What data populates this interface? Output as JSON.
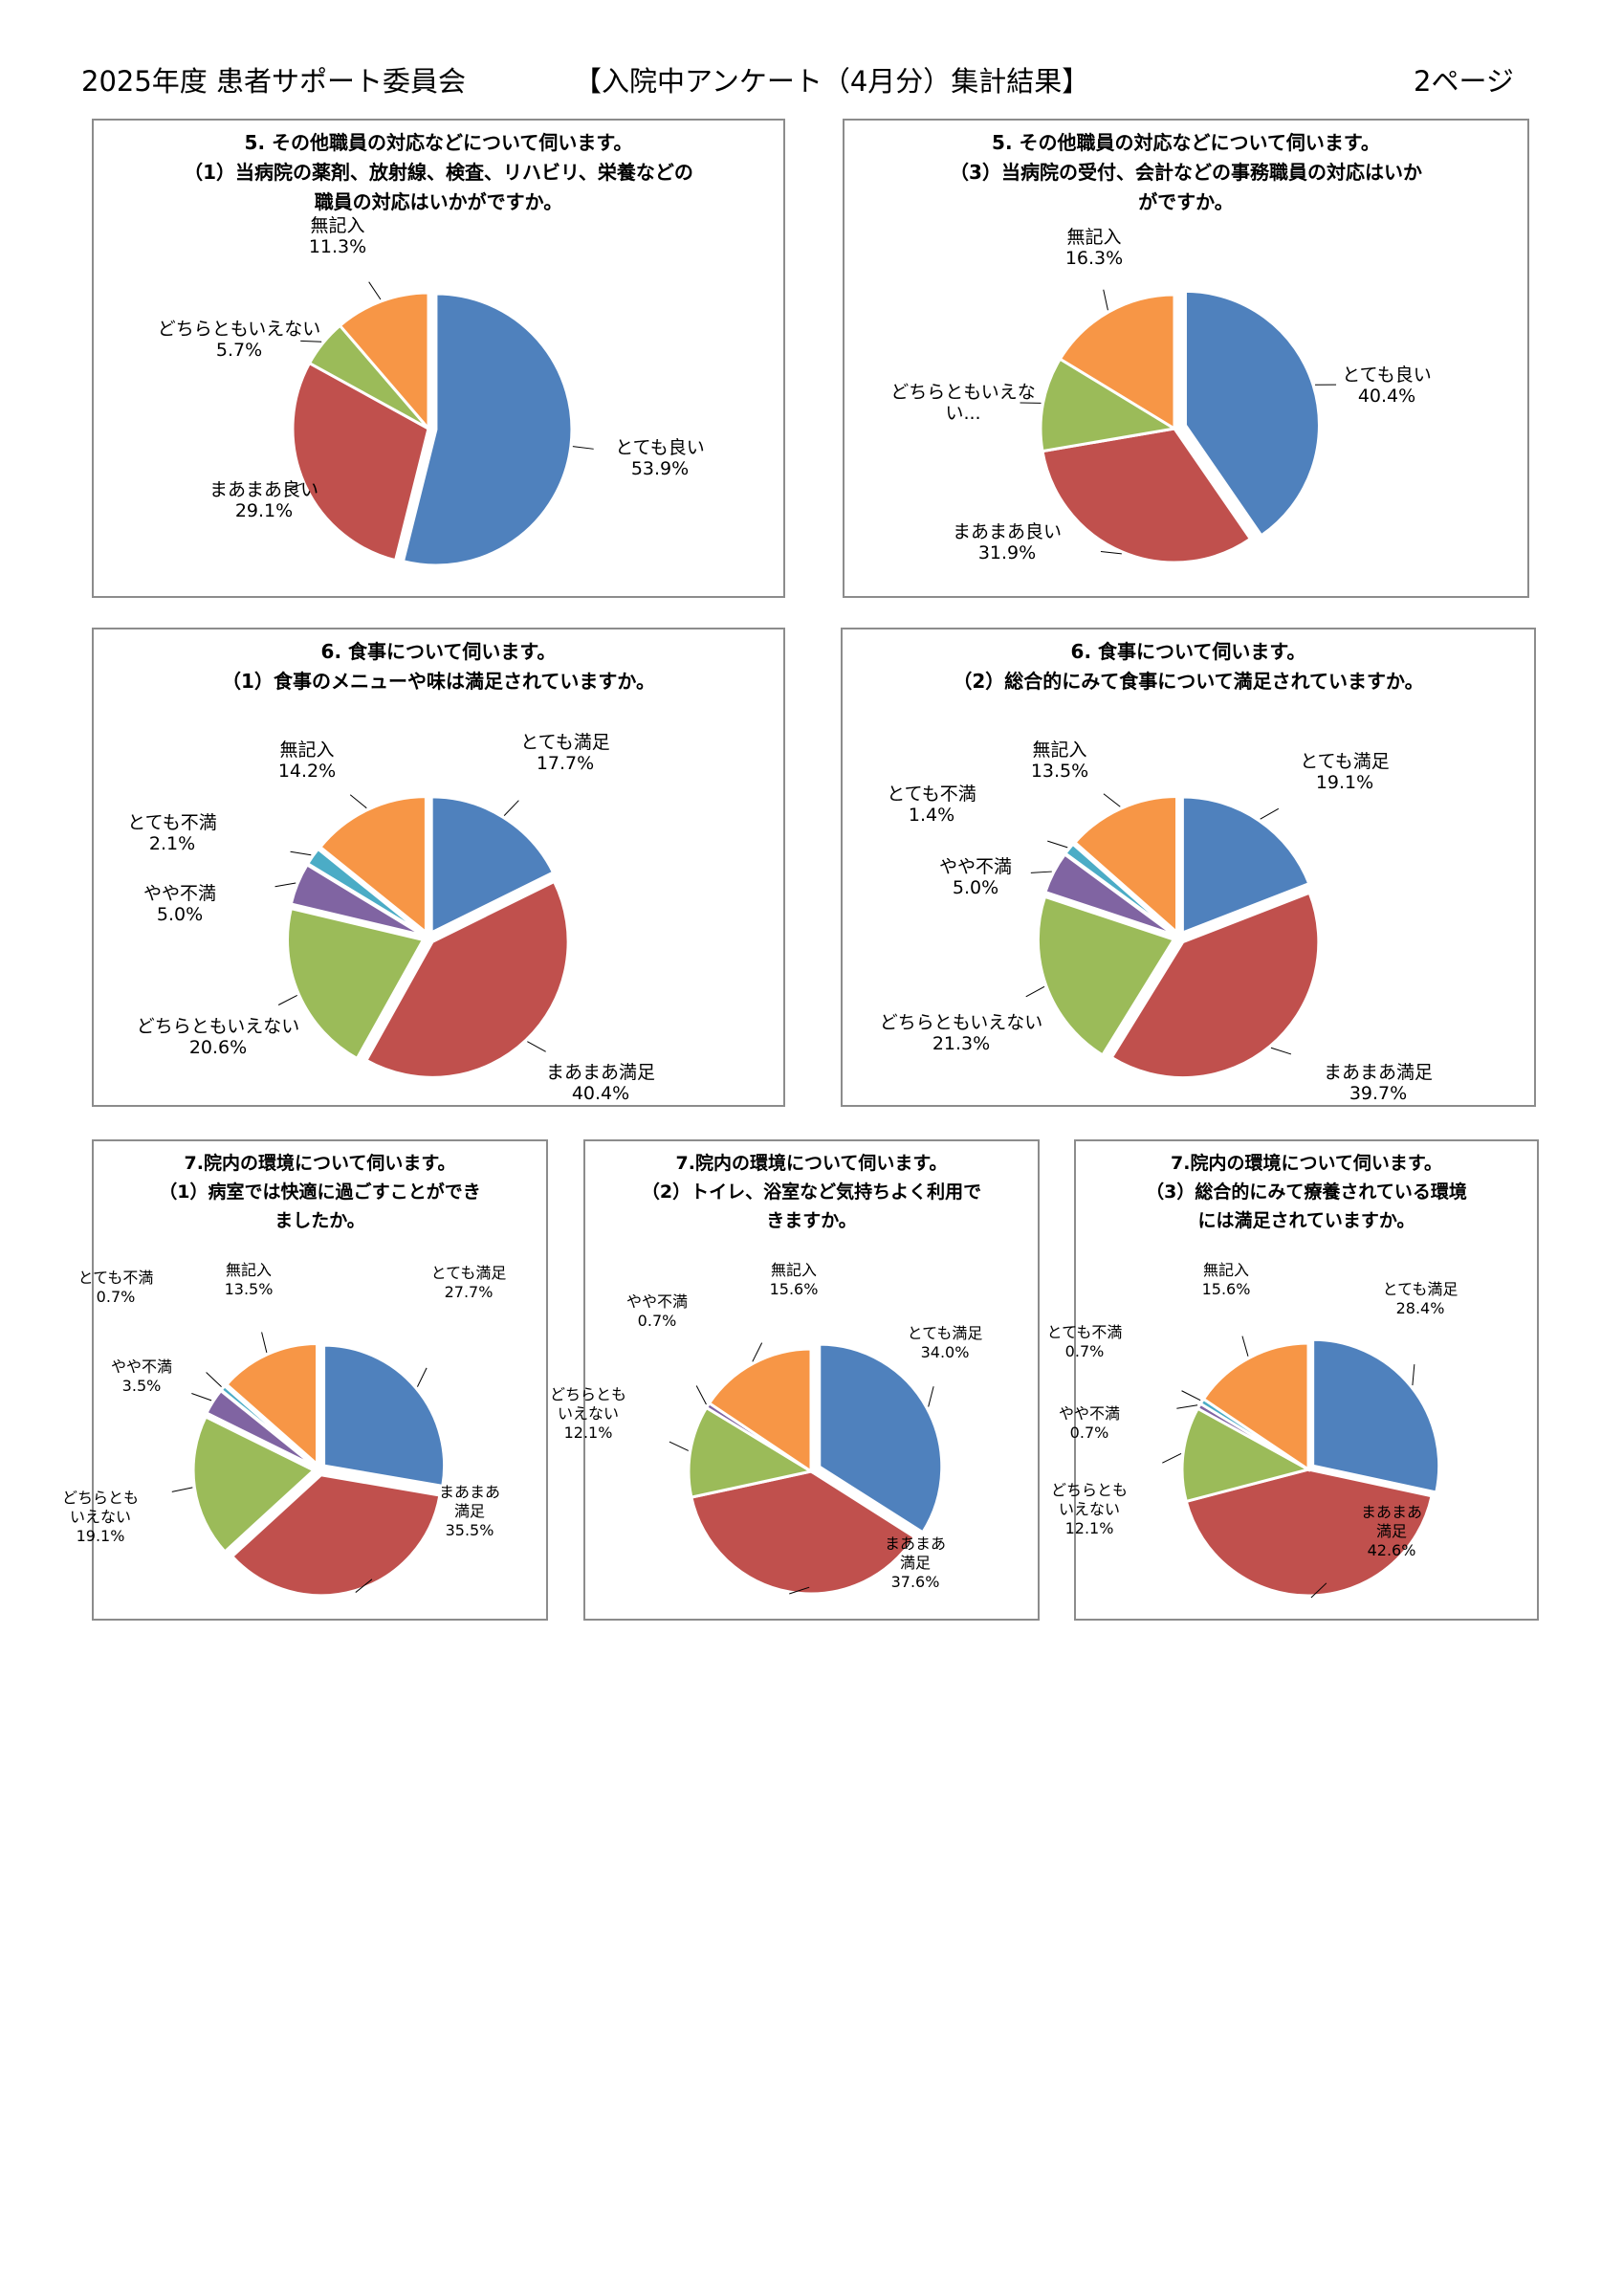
{
  "header": {
    "left": "2025年度 患者サポート委員会",
    "center": "【入院中アンケート（4月分）集計結果】",
    "right": "2ページ"
  },
  "colors": {
    "blue": "#4f81bd",
    "red": "#c0504d",
    "green": "#9bbb59",
    "purple": "#8064a2",
    "cyan": "#4bacc6",
    "orange": "#f79646"
  },
  "chart_data": [
    {
      "type": "pie",
      "title": "5. その他職員の対応などについて伺います。\n（1）当病院の薬剤、放射線、検査、リハビリ、栄養などの\n職員の対応はいかがですか。",
      "slices": [
        {
          "label": "とても良い",
          "value": 53.9,
          "value_label": "53.9%",
          "color": "blue"
        },
        {
          "label": "まあまあ良い",
          "value": 29.1,
          "value_label": "29.1%",
          "color": "red"
        },
        {
          "label": "どちらともいえない",
          "value": 5.7,
          "value_label": "5.7%",
          "color": "green"
        },
        {
          "label": "無記入",
          "value": 11.3,
          "value_label": "11.3%",
          "color": "orange"
        }
      ]
    },
    {
      "type": "pie",
      "title": "5. その他職員の対応などについて伺います。\n（3）当病院の受付、会計などの事務職員の対応はいか\nがですか。",
      "slices": [
        {
          "label": "とても良い",
          "value": 40.4,
          "value_label": "40.4%",
          "color": "blue"
        },
        {
          "label": "まあまあ良い",
          "value": 31.9,
          "value_label": "31.9%",
          "color": "red"
        },
        {
          "label": "どちらともいえな\nい...",
          "value": 11.4,
          "value_label": "",
          "color": "green"
        },
        {
          "label": "無記入",
          "value": 16.3,
          "value_label": "16.3%",
          "color": "orange"
        }
      ]
    },
    {
      "type": "pie",
      "title": "6. 食事について伺います。\n（1）食事のメニューや味は満足されていますか。",
      "slices": [
        {
          "label": "とても満足",
          "value": 17.7,
          "value_label": "17.7%",
          "color": "blue"
        },
        {
          "label": "まあまあ満足",
          "value": 40.4,
          "value_label": "40.4%",
          "color": "red"
        },
        {
          "label": "どちらともいえない",
          "value": 20.6,
          "value_label": "20.6%",
          "color": "green"
        },
        {
          "label": "やや不満",
          "value": 5.0,
          "value_label": "5.0%",
          "color": "purple"
        },
        {
          "label": "とても不満",
          "value": 2.1,
          "value_label": "2.1%",
          "color": "cyan"
        },
        {
          "label": "無記入",
          "value": 14.2,
          "value_label": "14.2%",
          "color": "orange"
        }
      ]
    },
    {
      "type": "pie",
      "title": "6. 食事について伺います。\n（2）総合的にみて食事について満足されていますか。",
      "slices": [
        {
          "label": "とても満足",
          "value": 19.1,
          "value_label": "19.1%",
          "color": "blue"
        },
        {
          "label": "まあまあ満足",
          "value": 39.7,
          "value_label": "39.7%",
          "color": "red"
        },
        {
          "label": "どちらともいえない",
          "value": 21.3,
          "value_label": "21.3%",
          "color": "green"
        },
        {
          "label": "やや不満",
          "value": 5.0,
          "value_label": "5.0%",
          "color": "purple"
        },
        {
          "label": "とても不満",
          "value": 1.4,
          "value_label": "1.4%",
          "color": "cyan"
        },
        {
          "label": "無記入",
          "value": 13.5,
          "value_label": "13.5%",
          "color": "orange"
        }
      ]
    },
    {
      "type": "pie",
      "title": "7.院内の環境について伺います。\n（1）病室では快適に過ごすことができ\nましたか。",
      "slices": [
        {
          "label": "とても満足",
          "value": 27.7,
          "value_label": "27.7%",
          "color": "blue"
        },
        {
          "label": "まあまあ\n満足",
          "value": 35.5,
          "value_label": "35.5%",
          "color": "red"
        },
        {
          "label": "どちらとも\nいえない",
          "value": 19.1,
          "value_label": "19.1%",
          "color": "green"
        },
        {
          "label": "やや不満",
          "value": 3.5,
          "value_label": "3.5%",
          "color": "purple"
        },
        {
          "label": "とても不満",
          "value": 0.7,
          "value_label": "0.7%",
          "color": "cyan"
        },
        {
          "label": "無記入",
          "value": 13.5,
          "value_label": "13.5%",
          "color": "orange"
        }
      ]
    },
    {
      "type": "pie",
      "title": "7.院内の環境について伺います。\n（2）トイレ、浴室など気持ちよく利用で\nきますか。",
      "slices": [
        {
          "label": "とても満足",
          "value": 34.0,
          "value_label": "34.0%",
          "color": "blue"
        },
        {
          "label": "まあまあ\n満足",
          "value": 37.6,
          "value_label": "37.6%",
          "color": "red"
        },
        {
          "label": "どちらとも\nいえない",
          "value": 12.1,
          "value_label": "12.1%",
          "color": "green"
        },
        {
          "label": "やや不満",
          "value": 0.7,
          "value_label": "0.7%",
          "color": "purple"
        },
        {
          "label": "無記入",
          "value": 15.6,
          "value_label": "15.6%",
          "color": "orange"
        }
      ]
    },
    {
      "type": "pie",
      "title": "7.院内の環境について伺います。\n（3）総合的にみて療養されている環境\nには満足されていますか。",
      "slices": [
        {
          "label": "とても満足",
          "value": 28.4,
          "value_label": "28.4%",
          "color": "blue"
        },
        {
          "label": "まあまあ\n満足",
          "value": 42.6,
          "value_label": "42.6%",
          "color": "red"
        },
        {
          "label": "どちらとも\nいえない",
          "value": 12.1,
          "value_label": "12.1%",
          "color": "green"
        },
        {
          "label": "やや不満",
          "value": 0.7,
          "value_label": "0.7%",
          "color": "purple"
        },
        {
          "label": "とても不満",
          "value": 0.7,
          "value_label": "0.7%",
          "color": "cyan"
        },
        {
          "label": "無記入",
          "value": 15.6,
          "value_label": "15.6%",
          "color": "orange"
        }
      ]
    }
  ]
}
